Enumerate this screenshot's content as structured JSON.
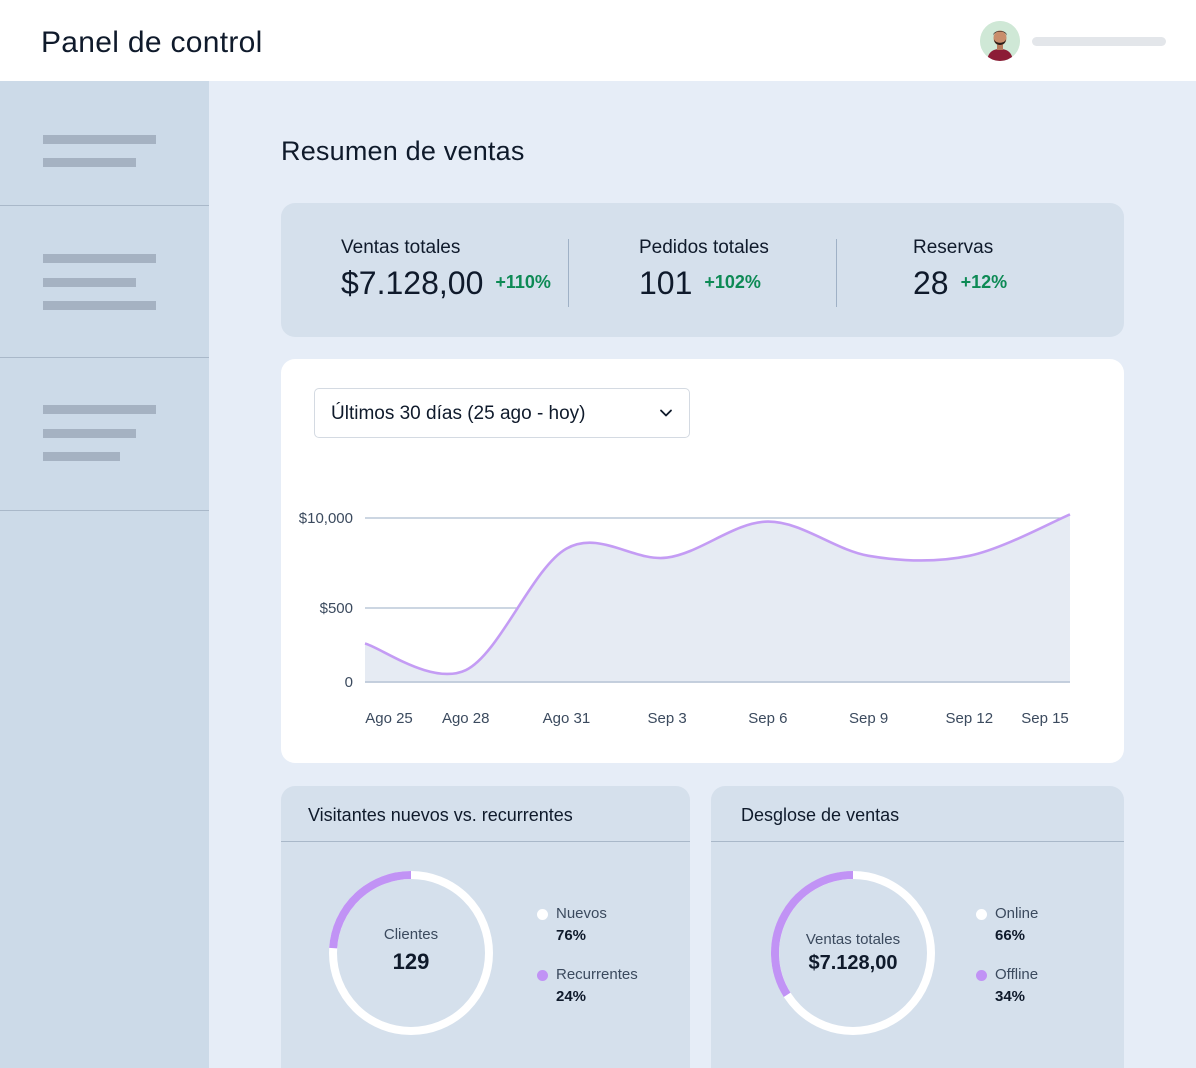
{
  "header": {
    "title": "Panel de control"
  },
  "main": {
    "title": "Resumen de ventas"
  },
  "kpis": [
    {
      "label": "Ventas totales",
      "value": "$7.128,00",
      "delta": "+110%"
    },
    {
      "label": "Pedidos totales",
      "value": "101",
      "delta": "+102%"
    },
    {
      "label": "Reservas",
      "value": "28",
      "delta": "+12%"
    }
  ],
  "chart": {
    "range_label": "Últimos 30 días (25 ago - hoy)",
    "y_ticks": [
      "$10,000",
      "$500",
      "0"
    ],
    "x_ticks": [
      "Ago 25",
      "Ago 28",
      "Ago 31",
      "Sep 3",
      "Sep 6",
      "Sep 9",
      "Sep 12",
      "Sep 15"
    ]
  },
  "chart_data": {
    "type": "area",
    "title": "",
    "xlabel": "",
    "ylabel": "",
    "categories": [
      "Ago 25",
      "Ago 28",
      "Ago 31",
      "Sep 3",
      "Sep 6",
      "Sep 9",
      "Sep 12",
      "Sep 15"
    ],
    "y_tick_labels": [
      "0",
      "$500",
      "$10,000"
    ],
    "note_values_in_axis_units": "y values expressed on the printed tick scale: 0, 500 (=$500), 1000 (=$10,000 line)",
    "x": [
      0,
      1,
      2,
      3,
      4,
      5,
      6,
      7
    ],
    "values": [
      260,
      80,
      830,
      780,
      980,
      790,
      790,
      1020
    ],
    "color": "#c49cf4",
    "fill": "#e6ebf3",
    "grid": true,
    "legend": "none"
  },
  "visitors_panel": {
    "title": "Visitantes nuevos vs. recurrentes",
    "center_label": "Clientes",
    "center_value": "129",
    "legend": [
      {
        "name": "Nuevos",
        "pct": "76%",
        "fraction": 0.76,
        "color": "#ffffff"
      },
      {
        "name": "Recurrentes",
        "pct": "24%",
        "fraction": 0.24,
        "color": "#c193f5"
      }
    ]
  },
  "sales_panel": {
    "title": "Desglose de ventas",
    "center_label": "Ventas totales",
    "center_value": "$7.128,00",
    "legend": [
      {
        "name": "Online",
        "pct": "66%",
        "fraction": 0.66,
        "color": "#ffffff"
      },
      {
        "name": "Offline",
        "pct": "34%",
        "fraction": 0.34,
        "color": "#c193f5"
      }
    ]
  },
  "icons": {
    "dropdown": "chevron-down-icon",
    "avatar": "user-avatar"
  }
}
